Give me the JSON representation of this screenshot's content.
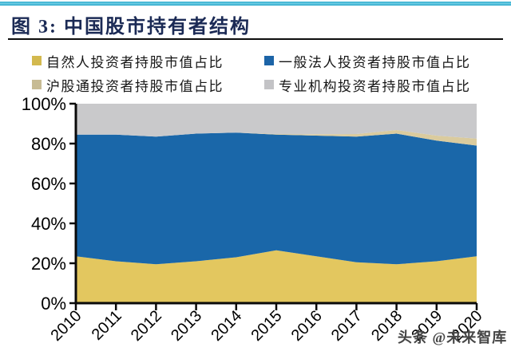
{
  "page": {
    "title": "图 3: 中国股市持有者结构",
    "watermark": "头条 @未来智库"
  },
  "colors": {
    "top_bar": "#3CB4D8",
    "title_text": "#1B2A55",
    "title_rule": "#0D0D0D",
    "axis": "#0A0A0A",
    "watermark_text": "#454545"
  },
  "legend": {
    "items": [
      {
        "label": "自然人投资者持股市值占比",
        "color": "#D3B94E"
      },
      {
        "label": "一般法人投资者持股市值占比",
        "color": "#1C64A7"
      },
      {
        "label": "沪股通投资者持股市值占比",
        "color": "#C7BB94"
      },
      {
        "label": "专业机构投资者持股市值占比",
        "color": "#C3C3C6"
      }
    ]
  },
  "chart_data": {
    "type": "area",
    "stacked": true,
    "title": "中国股市持有者结构",
    "xlabel": "",
    "ylabel": "",
    "ylim": [
      0,
      100
    ],
    "yticks": [
      "0%",
      "20%",
      "40%",
      "60%",
      "80%",
      "100%"
    ],
    "ytick_values": [
      0,
      20,
      40,
      60,
      80,
      100
    ],
    "grid": false,
    "legend_position": "top",
    "categories": [
      "2010",
      "2011",
      "2012",
      "2013",
      "2014",
      "2015",
      "2016",
      "2017",
      "2018",
      "2019",
      "2020"
    ],
    "series": [
      {
        "name": "自然人投资者持股市值占比",
        "color": "#E3C75F",
        "values": [
          23.5,
          21,
          19.5,
          21,
          23,
          26.5,
          23.5,
          20.5,
          19.5,
          21,
          23.5
        ]
      },
      {
        "name": "一般法人投资者持股市值占比",
        "color": "#1A67A9",
        "values": [
          61,
          63.5,
          64,
          64,
          62.5,
          58,
          60.5,
          63,
          65.5,
          60.5,
          55.5
        ]
      },
      {
        "name": "沪股通投资者持股市值占比",
        "color": "#DACB9E",
        "values": [
          0,
          0,
          0,
          0,
          0,
          0.3,
          0.7,
          1.3,
          1.8,
          2.5,
          3.5
        ]
      },
      {
        "name": "专业机构投资者持股市值占比",
        "color": "#C9C9CB",
        "values": [
          15.5,
          15.5,
          16.5,
          15,
          14.5,
          15.2,
          15.3,
          15.2,
          13.2,
          16,
          17.5
        ]
      }
    ]
  }
}
